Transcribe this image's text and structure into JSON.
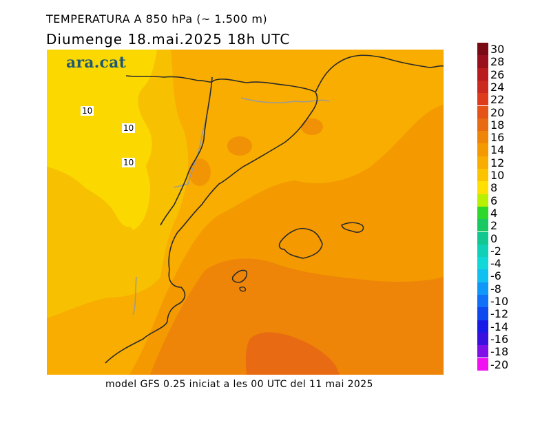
{
  "header": {
    "title": "TEMPERATURA A 850 hPa (~ 1.500 m)",
    "subtitle": "Diumenge  18.mai.2025  18h  UTC"
  },
  "footer": {
    "text": "model GFS 0.25 iniciat a les 00 UTC del 11 mai 2025"
  },
  "logo": {
    "text": "ara.cat"
  },
  "isotherm_labels": [
    "10",
    "10",
    "10"
  ],
  "legend": {
    "steps": [
      {
        "label": "30",
        "color": "#7a0a14"
      },
      {
        "label": "28",
        "color": "#9a0f1c"
      },
      {
        "label": "26",
        "color": "#b81a1e"
      },
      {
        "label": "24",
        "color": "#cc2a1f"
      },
      {
        "label": "22",
        "color": "#dd3b1c"
      },
      {
        "label": "20",
        "color": "#e55318"
      },
      {
        "label": "18",
        "color": "#e86a12"
      },
      {
        "label": "16",
        "color": "#ee8508"
      },
      {
        "label": "14",
        "color": "#f49a00"
      },
      {
        "label": "12",
        "color": "#f8ad00"
      },
      {
        "label": "10",
        "color": "#fbc300"
      },
      {
        "label": "8",
        "color": "#ffe000"
      },
      {
        "label": "6",
        "color": "#b8f000"
      },
      {
        "label": "4",
        "color": "#2ed82a"
      },
      {
        "label": "2",
        "color": "#18c860"
      },
      {
        "label": "0",
        "color": "#12c890"
      },
      {
        "label": "-2",
        "color": "#10d0b8"
      },
      {
        "label": "-4",
        "color": "#10d8d8"
      },
      {
        "label": "-6",
        "color": "#10c0f0"
      },
      {
        "label": "-8",
        "color": "#1098f8"
      },
      {
        "label": "-10",
        "color": "#1070f8"
      },
      {
        "label": "-12",
        "color": "#1048f0"
      },
      {
        "label": "-14",
        "color": "#1a1ae8"
      },
      {
        "label": "-16",
        "color": "#3a10e0"
      },
      {
        "label": "-18",
        "color": "#8010e8"
      },
      {
        "label": "-20",
        "color": "#f010f0"
      }
    ]
  },
  "map_colors": {
    "yellow": "#fbd800",
    "yellow_orange": "#f7c000",
    "light_orange": "#f8ad00",
    "orange": "#f49a00",
    "dark_orange": "#ee8508",
    "deep_orange": "#e86a12",
    "coastline": "#2a2a2a",
    "border": "#9a9a9a"
  }
}
